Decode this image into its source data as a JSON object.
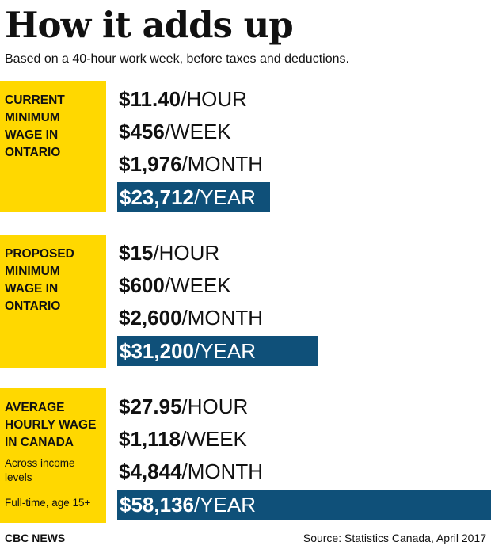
{
  "header": {
    "title": "How it adds up",
    "subtitle": "Based on a 40-hour work week, before taxes and deductions."
  },
  "colors": {
    "label_background": "#FFD800",
    "year_bar": "#0F5079",
    "text": "#111111"
  },
  "chart_data": {
    "type": "bar",
    "title": "How it adds up",
    "subtitle": "Based on a 40-hour work week, before taxes and deductions.",
    "categories": [
      "CURRENT MINIMUM WAGE IN ONTARIO",
      "PROPOSED MINIMUM WAGE IN ONTARIO",
      "AVERAGE HOURLY WAGE IN CANADA"
    ],
    "series": [
      {
        "values": [
          23712,
          31200,
          58136
        ]
      }
    ],
    "xlim": [
      0,
      58136
    ],
    "groups": [
      {
        "label": "CURRENT\nMINIMUM\nWAGE IN\nONTARIO",
        "notes": [],
        "rows": [
          {
            "amount": "$11.40",
            "unit": "/HOUR"
          },
          {
            "amount": "$456",
            "unit": "/WEEK"
          },
          {
            "amount": "$1,976",
            "unit": "/MONTH"
          }
        ],
        "yearly": {
          "amount": "$23,712",
          "unit": "/YEAR",
          "value": 23712
        }
      },
      {
        "label": "PROPOSED\nMINIMUM\nWAGE IN\nONTARIO",
        "notes": [],
        "rows": [
          {
            "amount": "$15",
            "unit": "/HOUR"
          },
          {
            "amount": "$600",
            "unit": "/WEEK"
          },
          {
            "amount": "$2,600",
            "unit": "/MONTH"
          }
        ],
        "yearly": {
          "amount": "$31,200",
          "unit": "/YEAR",
          "value": 31200
        }
      },
      {
        "label": "AVERAGE\nHOURLY WAGE\nIN CANADA",
        "notes": [
          "Across income\nlevels",
          "Full-time, age 15+"
        ],
        "rows": [
          {
            "amount": "$27.95",
            "unit": "/HOUR"
          },
          {
            "amount": "$1,118",
            "unit": "/WEEK"
          },
          {
            "amount": "$4,844",
            "unit": "/MONTH"
          }
        ],
        "yearly": {
          "amount": "$58,136",
          "unit": "/YEAR",
          "value": 58136
        }
      }
    ]
  },
  "footer": {
    "brand": "CBC NEWS",
    "source": "Source: Statistics Canada, April 2017"
  }
}
